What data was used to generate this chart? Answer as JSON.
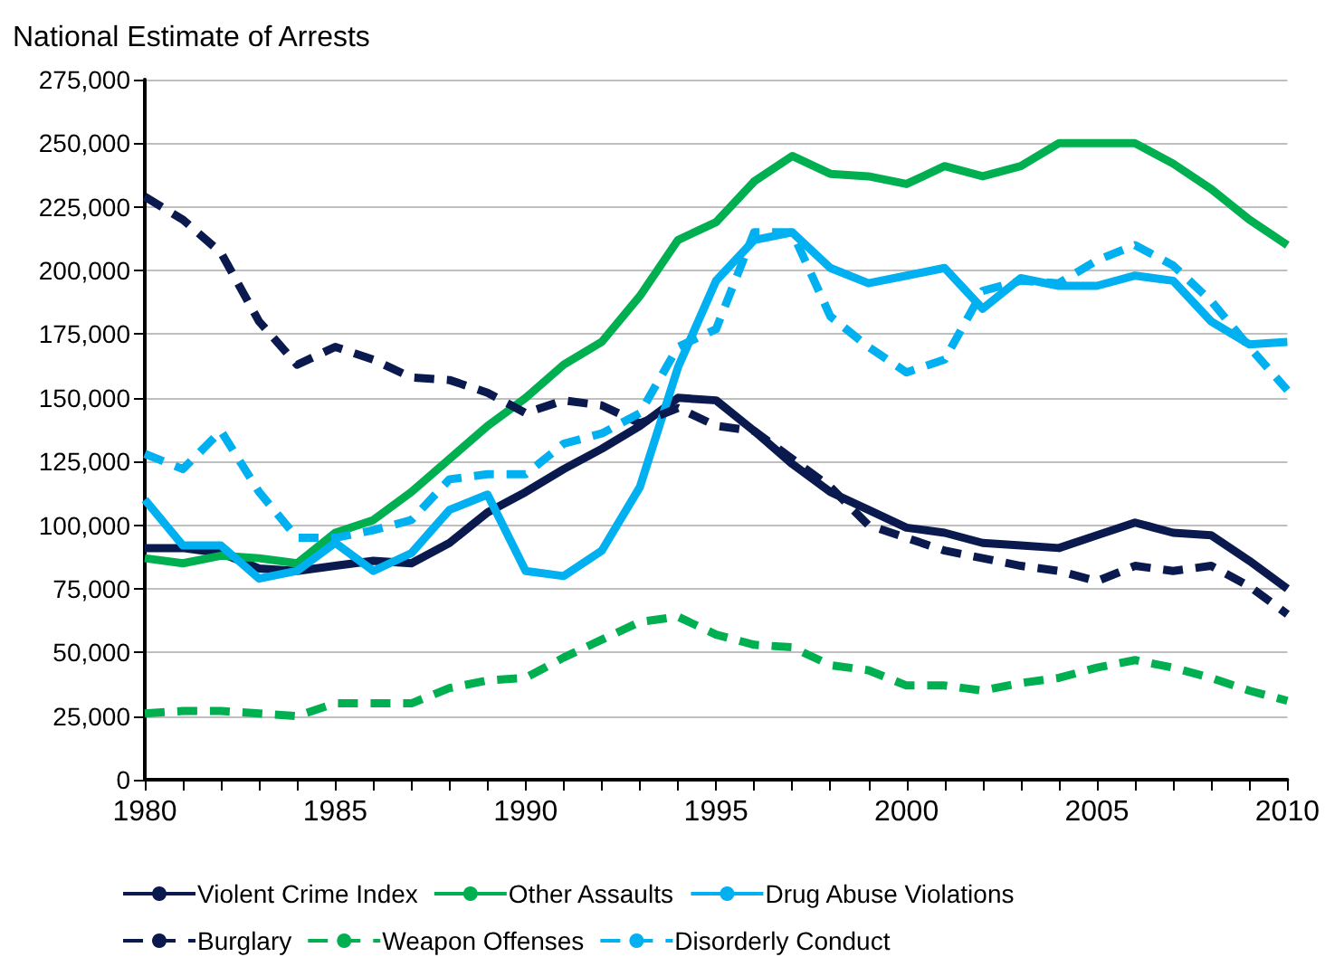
{
  "chart_data": {
    "type": "line",
    "title": "National Estimate of Arrests",
    "x": [
      1980,
      1981,
      1982,
      1983,
      1984,
      1985,
      1986,
      1987,
      1988,
      1989,
      1990,
      1991,
      1992,
      1993,
      1994,
      1995,
      1996,
      1997,
      1998,
      1999,
      2000,
      2001,
      2002,
      2003,
      2004,
      2005,
      2006,
      2007,
      2008,
      2009,
      2010
    ],
    "series": [
      {
        "name": "Violent Crime Index",
        "color": "#0b1a4e",
        "line_style": "solid",
        "values": [
          91000,
          91000,
          89000,
          83000,
          82000,
          84000,
          86000,
          85000,
          93000,
          105000,
          113000,
          122000,
          130000,
          139000,
          150000,
          149000,
          137000,
          124000,
          113000,
          106000,
          99000,
          97000,
          93000,
          92000,
          91000,
          96000,
          101000,
          97000,
          96000,
          86000,
          75000
        ]
      },
      {
        "name": "Other Assaults",
        "color": "#00b050",
        "line_style": "solid",
        "values": [
          87000,
          85000,
          88000,
          87000,
          85000,
          97000,
          102000,
          113000,
          126000,
          139000,
          150000,
          163000,
          172000,
          190000,
          212000,
          219000,
          235000,
          245000,
          238000,
          237000,
          234000,
          241000,
          237000,
          241000,
          250000,
          250000,
          250000,
          242000,
          232000,
          220000,
          210000
        ]
      },
      {
        "name": "Drug Abuse Violations",
        "color": "#00b0f0",
        "line_style": "solid",
        "values": [
          110000,
          92000,
          92000,
          79000,
          82000,
          93000,
          82000,
          89000,
          106000,
          112000,
          82000,
          80000,
          90000,
          115000,
          162000,
          196000,
          212000,
          215000,
          201000,
          195000,
          198000,
          201000,
          185000,
          197000,
          194000,
          194000,
          198000,
          196000,
          180000,
          171000,
          172000
        ]
      },
      {
        "name": "Burglary",
        "color": "#0b1a4e",
        "line_style": "dashed",
        "values": [
          229000,
          220000,
          207000,
          180000,
          163000,
          170000,
          165000,
          158000,
          157000,
          152000,
          144000,
          149000,
          147000,
          140000,
          146000,
          139000,
          137000,
          126000,
          115000,
          100000,
          95000,
          90000,
          87000,
          84000,
          82000,
          78000,
          84000,
          82000,
          84000,
          76000,
          65000
        ]
      },
      {
        "name": "Weapon Offenses",
        "color": "#00b050",
        "line_style": "dashed",
        "values": [
          26000,
          27000,
          27000,
          26000,
          25000,
          30000,
          30000,
          30000,
          36000,
          39000,
          40000,
          48000,
          55000,
          62000,
          64000,
          57000,
          53000,
          52000,
          45000,
          43000,
          37000,
          37000,
          35000,
          38000,
          40000,
          44000,
          47000,
          44000,
          40000,
          35000,
          31000
        ]
      },
      {
        "name": "Disorderly Conduct",
        "color": "#00b0f0",
        "line_style": "dashed",
        "values": [
          128000,
          122000,
          137000,
          113000,
          95000,
          95000,
          98000,
          102000,
          118000,
          120000,
          120000,
          132000,
          136000,
          144000,
          170000,
          177000,
          215000,
          215000,
          182000,
          170000,
          160000,
          165000,
          192000,
          196000,
          195000,
          204000,
          210000,
          202000,
          188000,
          170000,
          153000
        ]
      }
    ],
    "xlim": [
      1980,
      2010
    ],
    "xticks": [
      1980,
      {
        "value": 1981,
        "label": null
      },
      {
        "value": 1982,
        "label": null
      },
      {
        "value": 1983,
        "label": null
      },
      {
        "value": 1984,
        "label": null
      },
      1985,
      {
        "value": 1986,
        "label": null
      },
      {
        "value": 1987,
        "label": null
      },
      {
        "value": 1988,
        "label": null
      },
      {
        "value": 1989,
        "label": null
      },
      1990,
      {
        "value": 1991,
        "label": null
      },
      {
        "value": 1992,
        "label": null
      },
      {
        "value": 1993,
        "label": null
      },
      {
        "value": 1994,
        "label": null
      },
      1995,
      {
        "value": 1996,
        "label": null
      },
      {
        "value": 1997,
        "label": null
      },
      {
        "value": 1998,
        "label": null
      },
      {
        "value": 1999,
        "label": null
      },
      2000,
      {
        "value": 2001,
        "label": null
      },
      {
        "value": 2002,
        "label": null
      },
      {
        "value": 2003,
        "label": null
      },
      {
        "value": 2004,
        "label": null
      },
      2005,
      {
        "value": 2006,
        "label": null
      },
      {
        "value": 2007,
        "label": null
      },
      {
        "value": 2008,
        "label": null
      },
      {
        "value": 2009,
        "label": null
      },
      2010
    ],
    "ylim": [
      0,
      275000
    ],
    "yticks": [
      {
        "value": 0,
        "label": "0"
      },
      {
        "value": 25000,
        "label": "25,000"
      },
      {
        "value": 50000,
        "label": "50,000"
      },
      {
        "value": 75000,
        "label": "75,000"
      },
      {
        "value": 100000,
        "label": "100,000"
      },
      {
        "value": 125000,
        "label": "125,000"
      },
      {
        "value": 150000,
        "label": "150,000"
      },
      {
        "value": 175000,
        "label": "175,000"
      },
      {
        "value": 200000,
        "label": "200,000"
      },
      {
        "value": 225000,
        "label": "225,000"
      },
      {
        "value": 250000,
        "label": "250,000"
      },
      {
        "value": 275000,
        "label": "275,000"
      }
    ],
    "grid": "y",
    "legend": "bottom",
    "marker": "none"
  }
}
